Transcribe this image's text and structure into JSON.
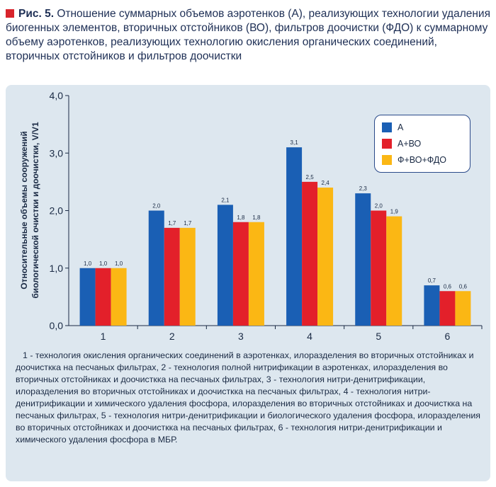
{
  "caption": {
    "figure_label": "Рис. 5.",
    "text": "Отношение суммарных объемов аэротенков (А), реализующих технологии удаления биогенных элементов, вторичных отстойников (ВО), фильтров доочистки (ФДО) к суммарному объему аэротенков, реализующих технологию окисления органических соединений, вторичных отстойников и фильтров доочистки"
  },
  "colors": {
    "A": "#1a5fb4",
    "A_VO": "#e3202a",
    "F_VO_FDO": "#fbb714",
    "marker": "#d8242c"
  },
  "chart_data": {
    "type": "bar",
    "categories": [
      "1",
      "2",
      "3",
      "4",
      "5",
      "6"
    ],
    "series": [
      {
        "name": "А",
        "values": [
          1.0,
          2.0,
          2.1,
          3.1,
          2.3,
          0.7
        ],
        "labels": [
          "1,0",
          "2,0",
          "2,1",
          "3,1",
          "2,3",
          "0,7"
        ]
      },
      {
        "name": "А+ВО",
        "values": [
          1.0,
          1.7,
          1.8,
          2.5,
          2.0,
          0.6
        ],
        "labels": [
          "1,0",
          "1,7",
          "1,8",
          "2,5",
          "2,0",
          "0,6"
        ]
      },
      {
        "name": "Ф+ВО+ФДО",
        "values": [
          1.0,
          1.7,
          1.8,
          2.4,
          1.9,
          0.6
        ],
        "labels": [
          "1,0",
          "1,7",
          "1,8",
          "2,4",
          "1,9",
          "0,6"
        ]
      }
    ],
    "ylabel_line1": "Относительные объемы сооружений",
    "ylabel_line2": "биологической очистки и доочистки, V/V1",
    "ylim": [
      0,
      4
    ],
    "yticks": [
      "0,0",
      "1,0",
      "2,0",
      "3,0",
      "4,0"
    ],
    "ytick_values": [
      0,
      1,
      2,
      3,
      4
    ],
    "legend_position": "top-right",
    "grid": false
  },
  "notes": "1 - технология окисления органических соединений в аэротенках, илоразделения во вторичных отстойниках и доочисткка на песчаных фильтрах, 2 - технология полной нитрификации в аэротенках, илоразделения во вторичных отстойниках и доочисткка на песчаных фильтрах, 3 - технология нитри-денитрификации, илоразделения во вторичных отстойниках и доочисткка на песчаных фильтрах, 4 - технология нитри-денитрификации и химического удаления фосфора, илоразделения во вторичных отстойниках и доочисткка на песчаных фильтрах, 5 - технология нитри-денитрификации и биологического удаления фосфора, илоразделения во вторичных отстойниках и доочисткка на песчаных фильтрах, 6 - технология нитри-денитрификации и химического удаления фосфора в МБР."
}
